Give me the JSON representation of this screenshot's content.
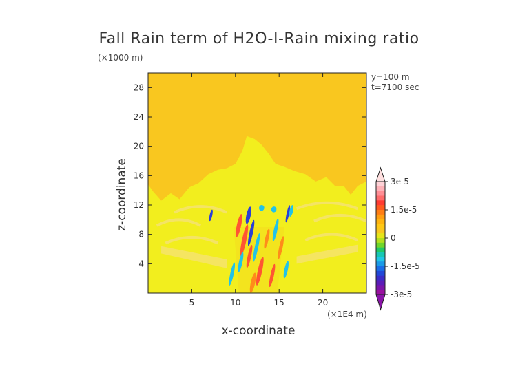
{
  "chart_data": {
    "type": "heatmap",
    "title": "Fall Rain term of H2O-I-Rain mixing ratio",
    "xlabel": "x-coordinate",
    "ylabel": "z-coordinate",
    "x_unit": "(×1E4 m)",
    "y_unit": "(×1000 m)",
    "annotations": [
      "y=100 m",
      "t=7100 sec"
    ],
    "xlim": [
      0,
      25
    ],
    "ylim": [
      0,
      30
    ],
    "x_ticks": [
      "5",
      "10",
      "15",
      "20"
    ],
    "y_ticks": [
      "4",
      "8",
      "12",
      "16",
      "20",
      "24",
      "28"
    ],
    "colorbar_labels": [
      "3e-5",
      "1.5e-5",
      "0",
      "-1.5e-5",
      "-3e-5"
    ],
    "colorbar_range": [
      -3e-05,
      3e-05
    ],
    "background_value": 0,
    "grid": false,
    "colors": {
      "background_field": "#f9c71f",
      "near_zero_positive": "#f2ee1e",
      "light_band": "#f5e272",
      "positive_high": "#ff5533",
      "positive_mid": "#ff8c1a",
      "negative_mid": "#22c2e8",
      "negative_low": "#2a3fd6"
    },
    "colorbar_bins": [
      "#ffd1d6",
      "#ffb2b8",
      "#ff8e95",
      "#ff6b6b",
      "#ff3b32",
      "#ff5a1e",
      "#ff7d14",
      "#ff9e10",
      "#ffb40f",
      "#ffc814",
      "#f9c71f",
      "#e5e51a",
      "#b4e01d",
      "#6fd62a",
      "#22c965",
      "#17c8b4",
      "#20c6e6",
      "#1a9be8",
      "#1a6ee8",
      "#2048d8",
      "#3a2cc8",
      "#5a1cb8",
      "#7a14aa",
      "#9a10a0"
    ]
  }
}
